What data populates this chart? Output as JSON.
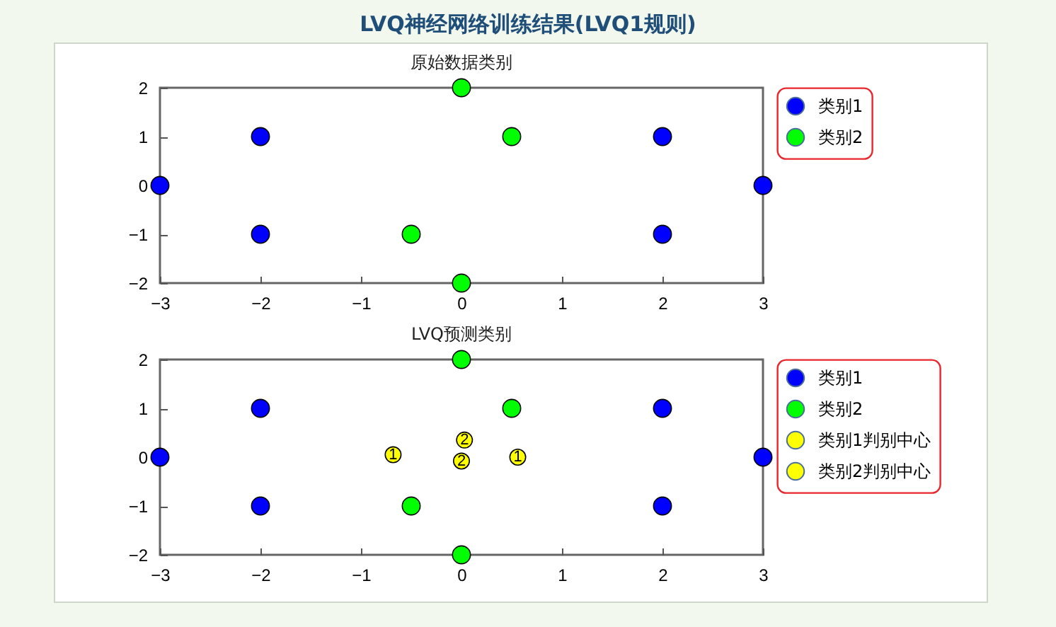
{
  "chart_data": [
    {
      "type": "scatter",
      "title": "LVQ神经网络训练结果(LVQ1规则)",
      "subtitle": "原始数据类别",
      "series": [
        {
          "name": "类别1",
          "color": "#0000ff",
          "x": [
            -3,
            -2,
            -2,
            2,
            2,
            3
          ],
          "values": [
            0,
            1,
            -1,
            1,
            -1,
            0
          ]
        },
        {
          "name": "类别2",
          "color": "#00ff00",
          "x": [
            0,
            0,
            0.5,
            -0.5
          ],
          "values": [
            2,
            -2,
            1,
            -1
          ]
        }
      ],
      "xlim": [
        -3,
        3
      ],
      "ylim": [
        -2,
        2
      ],
      "xticks": [
        -3,
        -2,
        -1,
        0,
        1,
        2,
        3
      ],
      "yticks": [
        -2,
        -1,
        0,
        1,
        2
      ],
      "grid": false,
      "legend": "top right",
      "marker": "circle"
    },
    {
      "type": "scatter",
      "title": "LVQ预测类别",
      "series": [
        {
          "name": "类别1",
          "color": "#0000ff",
          "x": [
            -3,
            -2,
            -2,
            2,
            2,
            3
          ],
          "values": [
            0,
            1,
            -1,
            1,
            -1,
            0
          ]
        },
        {
          "name": "类别2",
          "color": "#00ff00",
          "x": [
            0,
            0,
            0.5,
            -0.5
          ],
          "values": [
            2,
            -2,
            1,
            -1
          ]
        },
        {
          "name": "类别1判别中心",
          "color": "#ffff00",
          "x": [
            -0.68,
            0.56
          ],
          "values": [
            0.05,
            0
          ]
        },
        {
          "name": "类别2判别中心",
          "color": "#ffff00",
          "x": [
            0.03,
            0
          ],
          "values": [
            0.35,
            -0.08
          ]
        }
      ],
      "annotations": [
        {
          "text": "1",
          "x": -0.68,
          "y": 0.05
        },
        {
          "text": "1",
          "x": 0.56,
          "y": 0
        },
        {
          "text": "2",
          "x": 0.03,
          "y": 0.35
        },
        {
          "text": "2",
          "x": 0,
          "y": -0.08
        }
      ],
      "xlim": [
        -3,
        3
      ],
      "ylim": [
        -2,
        2
      ],
      "xticks": [
        -3,
        -2,
        -1,
        0,
        1,
        2,
        3
      ],
      "yticks": [
        -2,
        -1,
        0,
        1,
        2
      ],
      "grid": false,
      "legend": "top right",
      "marker": "circle"
    }
  ]
}
